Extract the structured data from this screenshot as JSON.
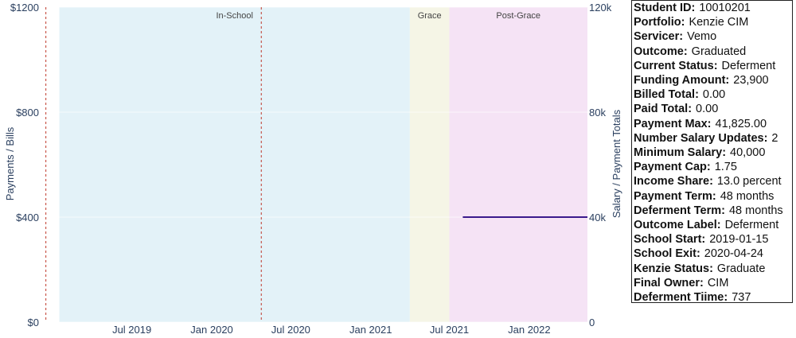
{
  "colors": {
    "in_school": "#e3f2f8",
    "grace": "#f5f5e6",
    "post_grace": "#f5e3f5",
    "salary_line": "#3a1a8c",
    "vline": "#c0392b"
  },
  "chart_data": {
    "type": "line",
    "xlim": [
      "2018-12-01",
      "2022-05-15"
    ],
    "x_ticks": [
      "2019-07-01",
      "2020-01-01",
      "2020-07-01",
      "2021-01-01",
      "2021-07-01",
      "2022-01-01"
    ],
    "x_tick_labels": [
      "Jul 2019",
      "Jan 2020",
      "Jul 2020",
      "Jan 2021",
      "Jul 2021",
      "Jan 2022"
    ],
    "y_left": {
      "label": "Payments / Bills",
      "range": [
        0,
        1200
      ],
      "ticks": [
        0,
        400,
        800,
        1200
      ],
      "tick_labels": [
        "$0",
        "$400",
        "$800",
        "$1200"
      ]
    },
    "y_right": {
      "label": "Salary / Payment Totals",
      "range": [
        0,
        120000
      ],
      "ticks": [
        0,
        40000,
        80000,
        120000
      ],
      "tick_labels": [
        "0",
        "40k",
        "80k",
        "120k"
      ]
    },
    "phases": [
      {
        "label": "In-School",
        "start": "2019-01-15",
        "end": "2021-04-01",
        "color_key": "in_school"
      },
      {
        "label": "Grace",
        "start": "2021-04-01",
        "end": "2021-07-01",
        "color_key": "grace"
      },
      {
        "label": "Post-Grace",
        "start": "2021-07-01",
        "end": "2022-05-15",
        "color_key": "post_grace"
      }
    ],
    "vlines": [
      "2018-12-15",
      "2020-04-24"
    ],
    "series": [
      {
        "axis": "right",
        "x": [
          "2021-08-01",
          "2022-05-15"
        ],
        "y": [
          40000,
          40000
        ]
      }
    ]
  },
  "info": [
    {
      "key": "Student ID:",
      "value": "10010201"
    },
    {
      "key": "Portfolio:",
      "value": "Kenzie CIM"
    },
    {
      "key": "Servicer:",
      "value": "Vemo"
    },
    {
      "key": "Outcome:",
      "value": "Graduated"
    },
    {
      "key": "Current Status:",
      "value": "Deferment"
    },
    {
      "key": "Funding Amount:",
      "value": "23,900"
    },
    {
      "key": "Billed Total:",
      "value": "0.00"
    },
    {
      "key": "Paid Total:",
      "value": "0.00"
    },
    {
      "key": "Payment Max:",
      "value": "41,825.00"
    },
    {
      "key": "Number Salary Updates:",
      "value": "2"
    },
    {
      "key": "Minimum Salary:",
      "value": "40,000"
    },
    {
      "key": "Payment Cap:",
      "value": "1.75"
    },
    {
      "key": "Income Share:",
      "value": "13.0 percent"
    },
    {
      "key": "Payment Term:",
      "value": "48 months"
    },
    {
      "key": "Deferment Term:",
      "value": "48 months"
    },
    {
      "key": "Outcome Label:",
      "value": "Deferment"
    },
    {
      "key": "School Start:",
      "value": "2019-01-15"
    },
    {
      "key": "School Exit:",
      "value": "2020-04-24"
    },
    {
      "key": "Kenzie Status:",
      "value": "Graduate"
    },
    {
      "key": "Final Owner:",
      "value": "CIM"
    },
    {
      "key": "Deferment Tiime:",
      "value": "737"
    }
  ]
}
